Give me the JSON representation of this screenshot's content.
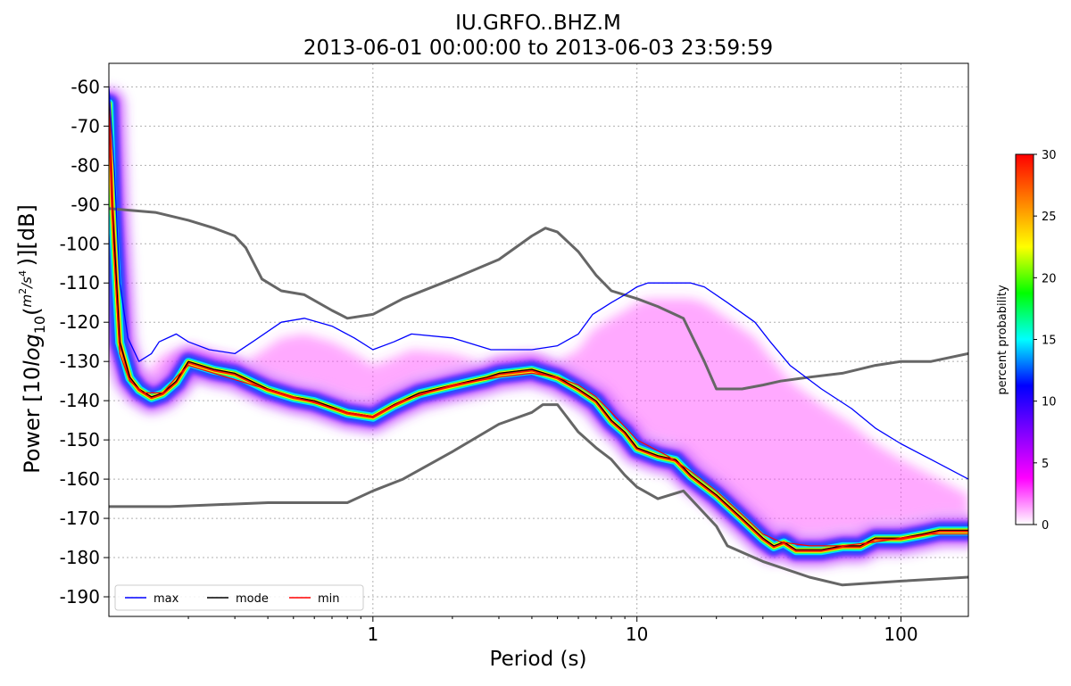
{
  "chart_data": {
    "type": "heatmap",
    "title": [
      "IU.GRFO..BHZ.M",
      "2013-06-01 00:00:00 to 2013-06-03 23:59:59"
    ],
    "xlabel": "Period (s)",
    "ylabel": "Power [10log10(m2/s4/hz)][dB]",
    "x_scale": "log",
    "xlim": [
      0.1,
      180
    ],
    "ylim": [
      -195,
      -54
    ],
    "xticks": [
      {
        "v": 1,
        "label": "1"
      },
      {
        "v": 10,
        "label": "10"
      },
      {
        "v": 100,
        "label": "100"
      }
    ],
    "yticks": [
      {
        "v": -60,
        "label": "-60"
      },
      {
        "v": -70,
        "label": "-70"
      },
      {
        "v": -80,
        "label": "-80"
      },
      {
        "v": -90,
        "label": "-90"
      },
      {
        "v": -100,
        "label": "-100"
      },
      {
        "v": -110,
        "label": "-110"
      },
      {
        "v": -120,
        "label": "-120"
      },
      {
        "v": -130,
        "label": "-130"
      },
      {
        "v": -140,
        "label": "-140"
      },
      {
        "v": -150,
        "label": "-150"
      },
      {
        "v": -160,
        "label": "-160"
      },
      {
        "v": -170,
        "label": "-170"
      },
      {
        "v": -180,
        "label": "-180"
      },
      {
        "v": -190,
        "label": "-190"
      }
    ],
    "grid": true,
    "legend_position": "bottom-left",
    "colorbar": {
      "label": "percent probability",
      "range": [
        0,
        30
      ],
      "ticks": [
        "0",
        "5",
        "10",
        "15",
        "20",
        "25",
        "30"
      ],
      "stops": [
        "#ffffff",
        "#ff00ff",
        "#8000ff",
        "#0000ff",
        "#00ffff",
        "#00ff00",
        "#ffff00",
        "#ff8000",
        "#ff0000"
      ]
    },
    "series": [
      {
        "name": "max",
        "color": "#0000ff",
        "points": [
          [
            0.1,
            -60
          ],
          [
            0.105,
            -82
          ],
          [
            0.11,
            -110
          ],
          [
            0.118,
            -124
          ],
          [
            0.13,
            -130
          ],
          [
            0.145,
            -128
          ],
          [
            0.155,
            -125
          ],
          [
            0.18,
            -123
          ],
          [
            0.2,
            -125
          ],
          [
            0.24,
            -127
          ],
          [
            0.3,
            -128
          ],
          [
            0.35,
            -125
          ],
          [
            0.45,
            -120
          ],
          [
            0.55,
            -119
          ],
          [
            0.7,
            -121
          ],
          [
            0.85,
            -124
          ],
          [
            1.0,
            -127
          ],
          [
            1.2,
            -125
          ],
          [
            1.4,
            -123
          ],
          [
            2.0,
            -124
          ],
          [
            2.8,
            -127
          ],
          [
            4.0,
            -127
          ],
          [
            5.0,
            -126
          ],
          [
            6.0,
            -123
          ],
          [
            6.8,
            -118
          ],
          [
            8.0,
            -115
          ],
          [
            9.0,
            -113
          ],
          [
            10.0,
            -111
          ],
          [
            11.0,
            -110
          ],
          [
            13.0,
            -110
          ],
          [
            16.0,
            -110
          ],
          [
            18.0,
            -111
          ],
          [
            22.0,
            -115
          ],
          [
            28.0,
            -120
          ],
          [
            32.0,
            -125
          ],
          [
            38.0,
            -131
          ],
          [
            50.0,
            -137
          ],
          [
            65.0,
            -142
          ],
          [
            80.0,
            -147
          ],
          [
            100.0,
            -151
          ],
          [
            130.0,
            -155
          ],
          [
            180.0,
            -160
          ]
        ]
      },
      {
        "name": "mode",
        "color": "#000000",
        "points": [
          [
            0.1,
            -64
          ],
          [
            0.103,
            -90
          ],
          [
            0.11,
            -125
          ],
          [
            0.12,
            -134
          ],
          [
            0.13,
            -137
          ],
          [
            0.145,
            -139
          ],
          [
            0.16,
            -138
          ],
          [
            0.18,
            -135
          ],
          [
            0.2,
            -130
          ],
          [
            0.25,
            -132
          ],
          [
            0.3,
            -133
          ],
          [
            0.4,
            -137
          ],
          [
            0.5,
            -139
          ],
          [
            0.6,
            -140
          ],
          [
            0.8,
            -143
          ],
          [
            1.0,
            -144
          ],
          [
            1.2,
            -141
          ],
          [
            1.5,
            -138
          ],
          [
            2.0,
            -136
          ],
          [
            2.7,
            -134
          ],
          [
            3.0,
            -133
          ],
          [
            4.0,
            -132
          ],
          [
            5.0,
            -134
          ],
          [
            6.0,
            -137
          ],
          [
            7.0,
            -140
          ],
          [
            8.0,
            -145
          ],
          [
            9.0,
            -148
          ],
          [
            10.0,
            -152
          ],
          [
            12.0,
            -154
          ],
          [
            14.0,
            -155
          ],
          [
            16.0,
            -159
          ],
          [
            20.0,
            -164
          ],
          [
            25.0,
            -170
          ],
          [
            30.0,
            -175
          ],
          [
            33.0,
            -177
          ],
          [
            36.0,
            -176
          ],
          [
            40.0,
            -178
          ],
          [
            50.0,
            -178
          ],
          [
            60.0,
            -177
          ],
          [
            70.0,
            -177
          ],
          [
            80.0,
            -175
          ],
          [
            100.0,
            -175
          ],
          [
            120.0,
            -174
          ],
          [
            140.0,
            -173
          ],
          [
            180.0,
            -173
          ]
        ]
      },
      {
        "name": "min",
        "color": "#ff0000",
        "points": [
          [
            0.1,
            -66
          ],
          [
            0.104,
            -100
          ],
          [
            0.11,
            -128
          ],
          [
            0.12,
            -135
          ],
          [
            0.135,
            -138
          ],
          [
            0.16,
            -138
          ],
          [
            0.18,
            -134
          ],
          [
            0.2,
            -131
          ],
          [
            0.25,
            -133
          ],
          [
            0.35,
            -136
          ],
          [
            0.5,
            -139
          ],
          [
            0.8,
            -143
          ],
          [
            1.0,
            -144
          ],
          [
            1.3,
            -140
          ],
          [
            2.0,
            -136
          ],
          [
            3.0,
            -134
          ],
          [
            4.0,
            -133
          ],
          [
            5.0,
            -134
          ],
          [
            6.0,
            -136
          ],
          [
            7.0,
            -139
          ],
          [
            8.0,
            -143
          ],
          [
            10.0,
            -150
          ],
          [
            13.0,
            -154
          ],
          [
            16.0,
            -158
          ],
          [
            20.0,
            -163
          ],
          [
            25.0,
            -169
          ],
          [
            30.0,
            -174
          ],
          [
            35.0,
            -176
          ],
          [
            45.0,
            -177
          ],
          [
            60.0,
            -177
          ],
          [
            80.0,
            -176
          ],
          [
            100.0,
            -175
          ],
          [
            130.0,
            -174
          ],
          [
            180.0,
            -174
          ]
        ]
      }
    ],
    "noise_models": {
      "color": "#666666",
      "nlnm": [
        [
          0.1,
          -167
        ],
        [
          0.17,
          -167
        ],
        [
          0.4,
          -166
        ],
        [
          0.8,
          -166
        ],
        [
          1.0,
          -163
        ],
        [
          1.3,
          -160
        ],
        [
          2.0,
          -153
        ],
        [
          3.0,
          -146
        ],
        [
          4.0,
          -143
        ],
        [
          4.4,
          -141
        ],
        [
          5.0,
          -141
        ],
        [
          6.0,
          -148
        ],
        [
          7.0,
          -152
        ],
        [
          8.0,
          -155
        ],
        [
          9.0,
          -159
        ],
        [
          10.0,
          -162
        ],
        [
          12.0,
          -165
        ],
        [
          15.0,
          -163
        ],
        [
          20.0,
          -172
        ],
        [
          22.0,
          -177
        ],
        [
          30.0,
          -181
        ],
        [
          45.0,
          -185
        ],
        [
          60.0,
          -187
        ],
        [
          100.0,
          -186
        ],
        [
          180.0,
          -185
        ]
      ],
      "nhnm": [
        [
          0.1,
          -91
        ],
        [
          0.15,
          -92
        ],
        [
          0.2,
          -94
        ],
        [
          0.25,
          -96
        ],
        [
          0.3,
          -98
        ],
        [
          0.33,
          -101
        ],
        [
          0.38,
          -109
        ],
        [
          0.45,
          -112
        ],
        [
          0.55,
          -113
        ],
        [
          0.7,
          -117
        ],
        [
          0.8,
          -119
        ],
        [
          1.0,
          -118
        ],
        [
          1.3,
          -114
        ],
        [
          2.0,
          -109
        ],
        [
          3.0,
          -104
        ],
        [
          4.0,
          -98
        ],
        [
          4.5,
          -96
        ],
        [
          5.0,
          -97
        ],
        [
          6.0,
          -102
        ],
        [
          7.0,
          -108
        ],
        [
          8.0,
          -112
        ],
        [
          10.0,
          -114
        ],
        [
          12.0,
          -116
        ],
        [
          15.0,
          -119
        ],
        [
          18.0,
          -130
        ],
        [
          20.0,
          -137
        ],
        [
          25.0,
          -137
        ],
        [
          30.0,
          -136
        ],
        [
          35.0,
          -135
        ],
        [
          45.0,
          -134
        ],
        [
          60.0,
          -133
        ],
        [
          80.0,
          -131
        ],
        [
          100.0,
          -130
        ],
        [
          130.0,
          -130
        ],
        [
          180.0,
          -128
        ]
      ]
    }
  },
  "legend": {
    "entries": [
      {
        "label": "max",
        "color": "#0000ff"
      },
      {
        "label": "mode",
        "color": "#000000"
      },
      {
        "label": "min",
        "color": "#ff0000"
      }
    ]
  }
}
